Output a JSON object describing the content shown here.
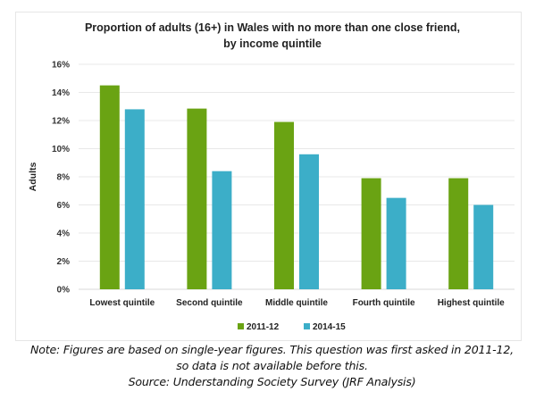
{
  "chart_data": {
    "type": "bar",
    "title": "Proportion of adults (16+) in Wales with no more than one close friend, by income quintile",
    "xlabel": "",
    "ylabel": "Adults",
    "ylim": [
      0,
      16
    ],
    "yticks": [
      "0%",
      "2%",
      "4%",
      "6%",
      "8%",
      "10%",
      "12%",
      "14%",
      "16%"
    ],
    "ytick_values": [
      0,
      2,
      4,
      6,
      8,
      10,
      12,
      14,
      16
    ],
    "grid": true,
    "legend_position": "bottom",
    "categories": [
      "Lowest quintile",
      "Second quintile",
      "Middle quintile",
      "Fourth quintile",
      "Highest quintile"
    ],
    "series": [
      {
        "name": "2011-12",
        "color": "#6aa313",
        "values": [
          14.5,
          12.85,
          11.9,
          7.9,
          7.9
        ]
      },
      {
        "name": "2014-15",
        "color": "#3caec8",
        "values": [
          12.8,
          8.4,
          9.6,
          6.5,
          6.0
        ]
      }
    ]
  },
  "note": {
    "line1": "Note: Figures are based on single-year figures. This question was first asked in 2011-12,",
    "line2": "so data is not available before this.",
    "line3": "Source: Understanding Society Survey (JRF Analysis)"
  }
}
